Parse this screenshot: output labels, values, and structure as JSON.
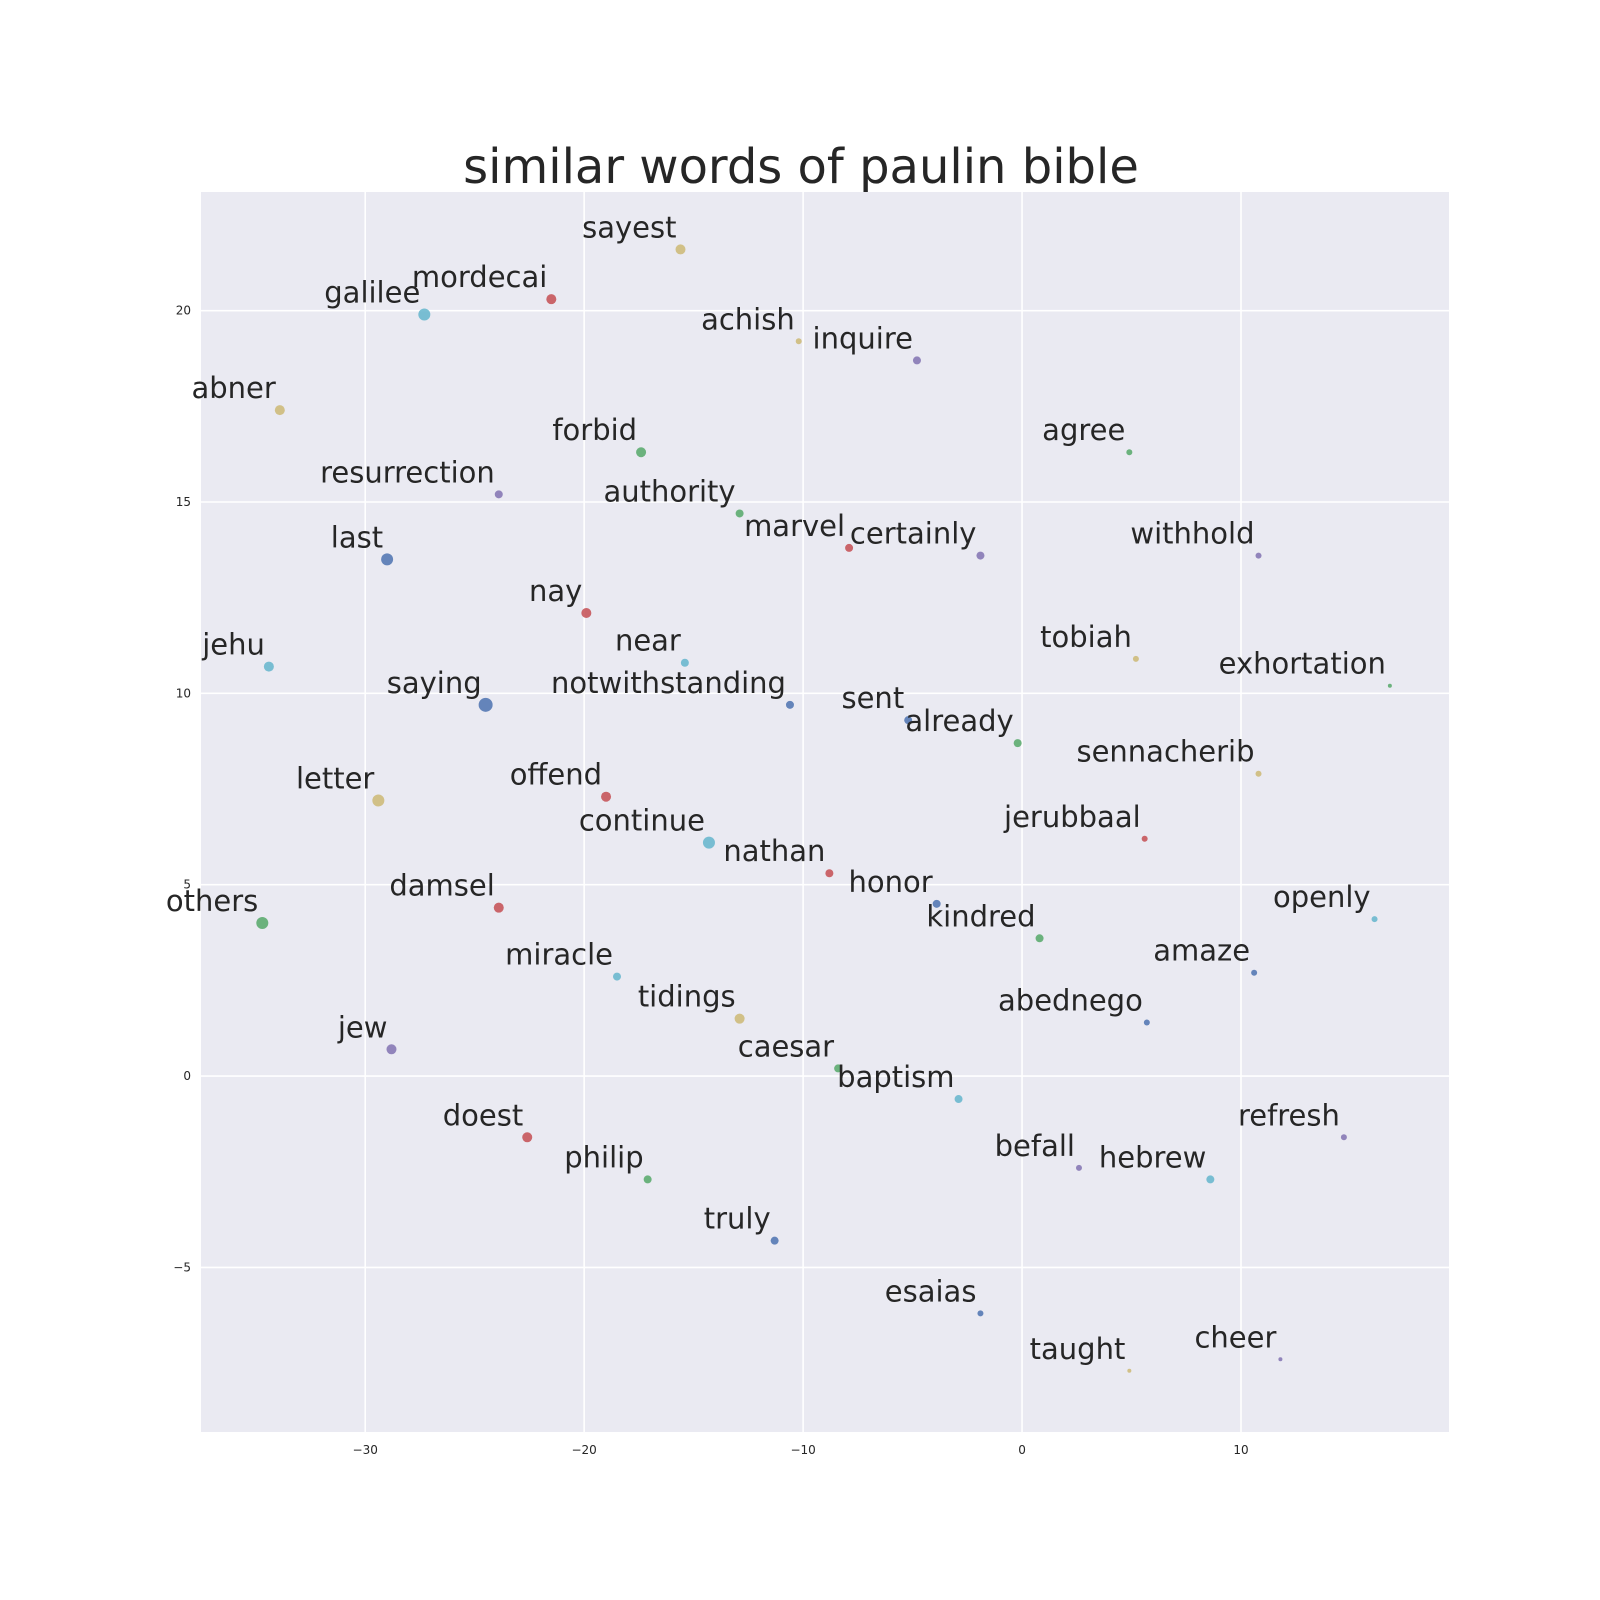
{
  "chart_data": {
    "type": "scatter",
    "title": "similar words of paulin bible",
    "xlabel": "",
    "ylabel": "",
    "xlim": [
      -37.5,
      19.5
    ],
    "ylim": [
      -9.3,
      23.1
    ],
    "xticks": [
      -30,
      -20,
      -10,
      0,
      10
    ],
    "yticks": [
      -5,
      0,
      5,
      10,
      15,
      20
    ],
    "xtick_labels": [
      "−30",
      "−20",
      "−10",
      "0",
      "10"
    ],
    "ytick_labels": [
      "−5",
      "0",
      "5",
      "10",
      "15",
      "20"
    ],
    "grid": true,
    "background": "#eaeaf2",
    "colors": {
      "blue": "#4c72b0",
      "green": "#55a868",
      "red": "#c44e52",
      "purple": "#8172b2",
      "yellow": "#ccb974",
      "cyan": "#64b5cd"
    },
    "points": [
      {
        "label": "sayest",
        "x": -15.6,
        "y": 21.6,
        "color": "yellow",
        "size": 5
      },
      {
        "label": "mordecai",
        "x": -21.5,
        "y": 20.3,
        "color": "red",
        "size": 5
      },
      {
        "label": "galilee",
        "x": -27.3,
        "y": 19.9,
        "color": "cyan",
        "size": 6
      },
      {
        "label": "achish",
        "x": -10.2,
        "y": 19.2,
        "color": "yellow",
        "size": 3
      },
      {
        "label": "inquire",
        "x": -4.8,
        "y": 18.7,
        "color": "purple",
        "size": 4
      },
      {
        "label": "abner",
        "x": -33.9,
        "y": 17.4,
        "color": "yellow",
        "size": 5
      },
      {
        "label": "forbid",
        "x": -17.4,
        "y": 16.3,
        "color": "green",
        "size": 5
      },
      {
        "label": "agree",
        "x": 4.9,
        "y": 16.3,
        "color": "green",
        "size": 3
      },
      {
        "label": "resurrection",
        "x": -23.9,
        "y": 15.2,
        "color": "purple",
        "size": 4
      },
      {
        "label": "authority",
        "x": -12.9,
        "y": 14.7,
        "color": "green",
        "size": 4
      },
      {
        "label": "marvel",
        "x": -7.9,
        "y": 13.8,
        "color": "red",
        "size": 4
      },
      {
        "label": "certainly",
        "x": -1.9,
        "y": 13.6,
        "color": "purple",
        "size": 4
      },
      {
        "label": "withhold",
        "x": 10.8,
        "y": 13.6,
        "color": "purple",
        "size": 3
      },
      {
        "label": "last",
        "x": -29.0,
        "y": 13.5,
        "color": "blue",
        "size": 6
      },
      {
        "label": "nay",
        "x": -19.9,
        "y": 12.1,
        "color": "red",
        "size": 5
      },
      {
        "label": "tobiah",
        "x": 5.2,
        "y": 10.9,
        "color": "yellow",
        "size": 3
      },
      {
        "label": "near",
        "x": -15.4,
        "y": 10.8,
        "color": "cyan",
        "size": 4
      },
      {
        "label": "jehu",
        "x": -34.4,
        "y": 10.7,
        "color": "cyan",
        "size": 5
      },
      {
        "label": "exhortation",
        "x": 16.8,
        "y": 10.2,
        "color": "green",
        "size": 2
      },
      {
        "label": "saying",
        "x": -24.5,
        "y": 9.7,
        "color": "blue",
        "size": 7
      },
      {
        "label": "notwithstanding",
        "x": -10.6,
        "y": 9.7,
        "color": "blue",
        "size": 4
      },
      {
        "label": "sent",
        "x": -5.2,
        "y": 9.3,
        "color": "blue",
        "size": 4
      },
      {
        "label": "already",
        "x": -0.2,
        "y": 8.7,
        "color": "green",
        "size": 4
      },
      {
        "label": "sennacherib",
        "x": 10.8,
        "y": 7.9,
        "color": "yellow",
        "size": 3
      },
      {
        "label": "offend",
        "x": -19.0,
        "y": 7.3,
        "color": "red",
        "size": 5
      },
      {
        "label": "letter",
        "x": -29.4,
        "y": 7.2,
        "color": "yellow",
        "size": 6
      },
      {
        "label": "jerubbaal",
        "x": 5.6,
        "y": 6.2,
        "color": "red",
        "size": 3
      },
      {
        "label": "continue",
        "x": -14.3,
        "y": 6.1,
        "color": "cyan",
        "size": 6
      },
      {
        "label": "nathan",
        "x": -8.8,
        "y": 5.3,
        "color": "red",
        "size": 4
      },
      {
        "label": "honor",
        "x": -3.9,
        "y": 4.5,
        "color": "blue",
        "size": 4
      },
      {
        "label": "damsel",
        "x": -23.9,
        "y": 4.4,
        "color": "red",
        "size": 5
      },
      {
        "label": "openly",
        "x": 16.1,
        "y": 4.1,
        "color": "cyan",
        "size": 3
      },
      {
        "label": "others",
        "x": -34.7,
        "y": 4.0,
        "color": "green",
        "size": 6
      },
      {
        "label": "kindred",
        "x": 0.8,
        "y": 3.6,
        "color": "green",
        "size": 4
      },
      {
        "label": "amaze",
        "x": 10.6,
        "y": 2.7,
        "color": "blue",
        "size": 3
      },
      {
        "label": "miracle",
        "x": -18.5,
        "y": 2.6,
        "color": "cyan",
        "size": 4
      },
      {
        "label": "tidings",
        "x": -12.9,
        "y": 1.5,
        "color": "yellow",
        "size": 5
      },
      {
        "label": "abednego",
        "x": 5.7,
        "y": 1.4,
        "color": "blue",
        "size": 3
      },
      {
        "label": "jew",
        "x": -28.8,
        "y": 0.7,
        "color": "purple",
        "size": 5
      },
      {
        "label": "caesar",
        "x": -8.4,
        "y": 0.2,
        "color": "green",
        "size": 4
      },
      {
        "label": "baptism",
        "x": -2.9,
        "y": -0.6,
        "color": "cyan",
        "size": 4
      },
      {
        "label": "doest",
        "x": -22.6,
        "y": -1.6,
        "color": "red",
        "size": 5
      },
      {
        "label": "refresh",
        "x": 14.7,
        "y": -1.6,
        "color": "purple",
        "size": 3
      },
      {
        "label": "befall",
        "x": 2.6,
        "y": -2.4,
        "color": "purple",
        "size": 3
      },
      {
        "label": "philip",
        "x": -17.1,
        "y": -2.7,
        "color": "green",
        "size": 4
      },
      {
        "label": "hebrew",
        "x": 8.6,
        "y": -2.7,
        "color": "cyan",
        "size": 4
      },
      {
        "label": "truly",
        "x": -11.3,
        "y": -4.3,
        "color": "blue",
        "size": 4
      },
      {
        "label": "esaias",
        "x": -1.9,
        "y": -6.2,
        "color": "blue",
        "size": 3
      },
      {
        "label": "cheer",
        "x": 11.8,
        "y": -7.4,
        "color": "purple",
        "size": 2
      },
      {
        "label": "taught",
        "x": 4.9,
        "y": -7.7,
        "color": "yellow",
        "size": 2
      }
    ]
  }
}
